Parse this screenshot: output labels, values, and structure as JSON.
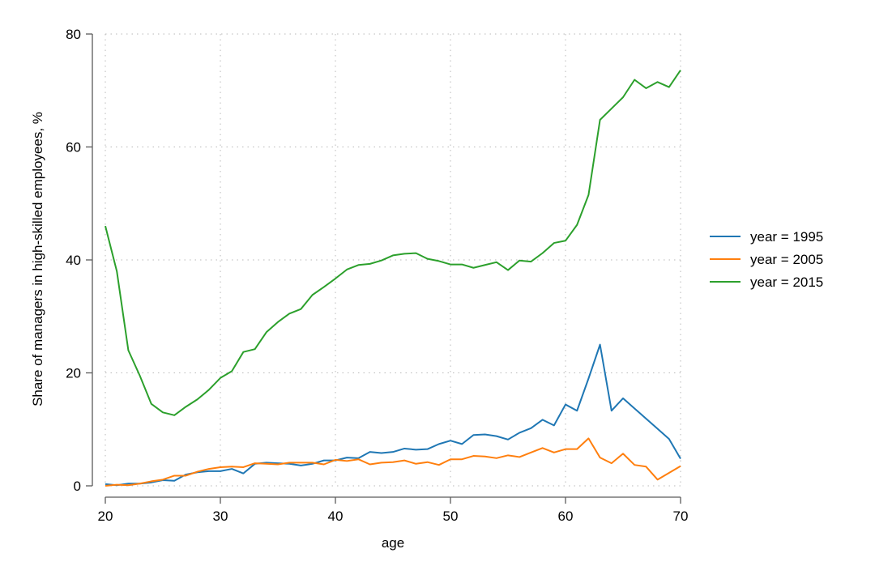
{
  "chart_data": {
    "type": "line",
    "xlabel": "age",
    "ylabel": "Share of managers in high-skilled employees, %",
    "xlim": [
      20,
      70
    ],
    "ylim": [
      0,
      80
    ],
    "xticks": [
      "20",
      "30",
      "40",
      "50",
      "60",
      "70"
    ],
    "yticks": [
      "0",
      "20",
      "40",
      "60",
      "80"
    ],
    "grid": true,
    "legend_position": "right",
    "x": [
      20,
      21,
      22,
      23,
      24,
      25,
      26,
      27,
      28,
      29,
      30,
      31,
      32,
      33,
      34,
      35,
      36,
      37,
      38,
      39,
      40,
      41,
      42,
      43,
      44,
      45,
      46,
      47,
      48,
      49,
      50,
      51,
      52,
      53,
      54,
      55,
      56,
      57,
      58,
      59,
      60,
      61,
      62,
      63,
      64,
      65,
      66,
      67,
      68,
      69,
      70
    ],
    "series": [
      {
        "name": "year = 1995",
        "color": "#1f77b4",
        "values": [
          0.3,
          0.1,
          0.4,
          0.4,
          0.6,
          1.0,
          0.9,
          2.0,
          2.4,
          2.6,
          2.6,
          3.0,
          2.2,
          3.9,
          4.1,
          4.0,
          3.9,
          3.6,
          3.9,
          4.5,
          4.5,
          5.0,
          4.9,
          6.0,
          5.8,
          6.0,
          6.6,
          6.4,
          6.5,
          7.4,
          8.0,
          7.4,
          9.0,
          9.1,
          8.8,
          8.2,
          9.4,
          10.2,
          11.7,
          10.7,
          14.4,
          13.3,
          19.0,
          25.0,
          13.3,
          15.5,
          13.7,
          11.9,
          10.1,
          8.3,
          4.8
        ]
      },
      {
        "name": "year = 2005",
        "color": "#ff7f0e",
        "values": [
          0.0,
          0.2,
          0.1,
          0.4,
          0.8,
          1.1,
          1.8,
          1.8,
          2.5,
          3.0,
          3.3,
          3.4,
          3.3,
          4.0,
          3.9,
          3.8,
          4.1,
          4.1,
          4.1,
          3.8,
          4.6,
          4.4,
          4.7,
          3.8,
          4.1,
          4.2,
          4.5,
          3.9,
          4.2,
          3.7,
          4.7,
          4.7,
          5.3,
          5.2,
          4.9,
          5.4,
          5.1,
          5.9,
          6.7,
          5.9,
          6.5,
          6.5,
          8.4,
          5.0,
          4.0,
          5.7,
          3.7,
          3.4,
          1.1,
          2.3,
          3.5
        ]
      },
      {
        "name": "year = 2015",
        "color": "#2ca02c",
        "values": [
          46.0,
          38.0,
          24.0,
          19.5,
          14.5,
          13.0,
          12.5,
          14.0,
          15.3,
          17.0,
          19.1,
          20.3,
          23.7,
          24.2,
          27.2,
          29.0,
          30.5,
          31.3,
          33.8,
          35.2,
          36.7,
          38.3,
          39.1,
          39.3,
          39.9,
          40.8,
          41.1,
          41.2,
          40.2,
          39.8,
          39.2,
          39.2,
          38.6,
          39.1,
          39.6,
          38.2,
          39.9,
          39.7,
          41.2,
          43.0,
          43.4,
          46.2,
          51.5,
          64.8,
          66.8,
          68.8,
          71.9,
          70.4,
          71.5,
          70.6,
          73.6
        ]
      }
    ]
  }
}
